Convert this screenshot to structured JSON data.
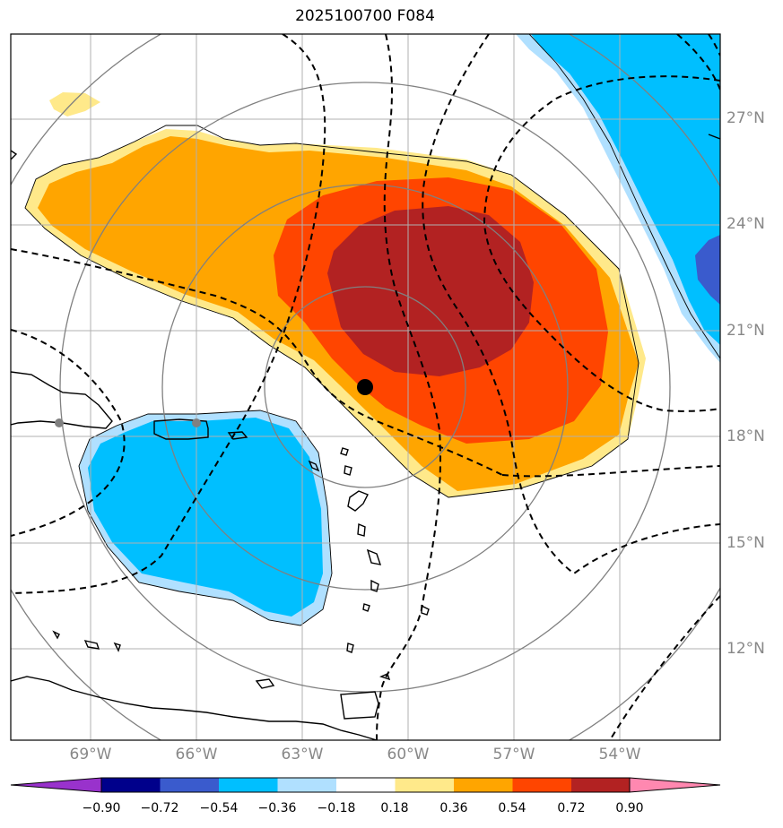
{
  "title": "2025100700 F084",
  "lat_labels": [
    "27°N",
    "24°N",
    "21°N",
    "18°N",
    "15°N",
    "12°N"
  ],
  "lon_labels": [
    "69°W",
    "66°W",
    "63°W",
    "60°W",
    "57°W",
    "54°W"
  ],
  "colorbar": {
    "ticks": [
      "−0.90",
      "−0.72",
      "−0.54",
      "−0.36",
      "−0.18",
      "0.18",
      "0.36",
      "0.54",
      "0.72",
      "0.90"
    ],
    "colors": [
      "#9932cc",
      "#00008b",
      "#3a5bcd",
      "#00bfff",
      "#b0e0ff",
      "#ffffff",
      "#ffe98a",
      "#ffa500",
      "#ff4500",
      "#b22222",
      "#ff88b0"
    ]
  },
  "colors": {
    "grid": "#b0b0b0",
    "range_rings": "#808080",
    "contours": "#000000",
    "storm_center": "#000000",
    "reference_points": "#808080"
  }
}
